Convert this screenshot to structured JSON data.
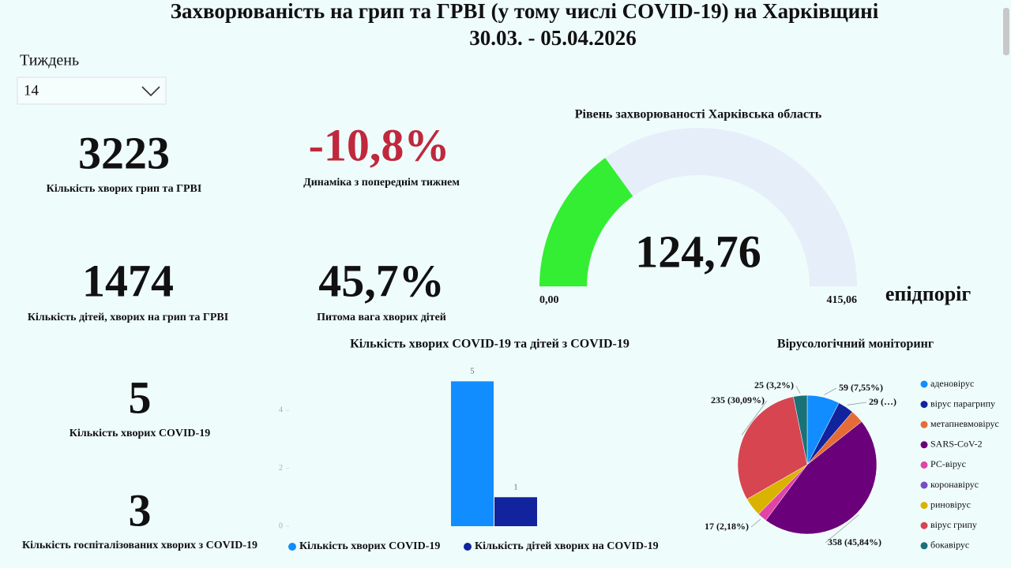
{
  "header": {
    "title": "Захворюваність на грип та ГРВІ (у тому числі COVID-19) на Харківщині",
    "subtitle": "30.03. - 05.04.2026"
  },
  "filter": {
    "label": "Тиждень",
    "value": "14"
  },
  "cards": [
    {
      "value": "3223",
      "caption": "Кількість хворих грип та ГРВІ"
    },
    {
      "value": "-10,8%",
      "caption": "Динаміка з попереднім тижнем"
    },
    {
      "value": "1474",
      "caption": "Кількість дітей, хворих на грип та ГРВІ"
    },
    {
      "value": "45,7%",
      "caption": "Питома вага хворих дітей"
    },
    {
      "value": "5",
      "caption": "Кількість хворих COVID-19"
    },
    {
      "value": "3",
      "caption": "Кількість госпіталізованих хворих з COVID-19"
    }
  ],
  "chart_data": [
    {
      "type": "gauge",
      "title": "Рівень захворюваності Харківська область",
      "value": 124.76,
      "value_label": "124,76",
      "color": "#33ee33",
      "track_color": "#e6eefa",
      "min": {
        "value": 0,
        "label": "0,00"
      },
      "max": {
        "value": 415.06,
        "label": "415,06"
      },
      "target_label": "епідпоріг"
    },
    {
      "type": "bar",
      "title": "Кількість хворих COVID-19 та дітей з COVID-19",
      "series": [
        {
          "name": "Кількість хворих COVID-19",
          "color": "#118dff",
          "values": [
            5
          ]
        },
        {
          "name": "Кількість дітей хворих на COVID-19",
          "color": "#12239e",
          "values": [
            1
          ]
        }
      ],
      "ylim": [
        0,
        5.5
      ],
      "yticks": [
        0,
        2,
        4
      ]
    },
    {
      "type": "pie",
      "title": "Вірусологічний моніторинг",
      "categories": [
        "аденовірус",
        "вірус парагрипу",
        "метапневмовірус",
        "SARS-CoV-2",
        "РС-вірус",
        "коронавірус",
        "риновірус",
        "вірус грипу",
        "бокавірус"
      ],
      "values": [
        59,
        29,
        24,
        358,
        17,
        0,
        34,
        235,
        25
      ],
      "value_labels": [
        "59 (7,55%)",
        "29 (…)",
        null,
        "358 (45,84%)",
        "17 (2,18%)",
        null,
        null,
        "235 (30,09%)",
        "25 (3,2%)"
      ],
      "colors": [
        "#118dff",
        "#12239e",
        "#e66c37",
        "#6b007b",
        "#e044a7",
        "#744ec2",
        "#d9b300",
        "#d64550",
        "#197278"
      ]
    }
  ]
}
